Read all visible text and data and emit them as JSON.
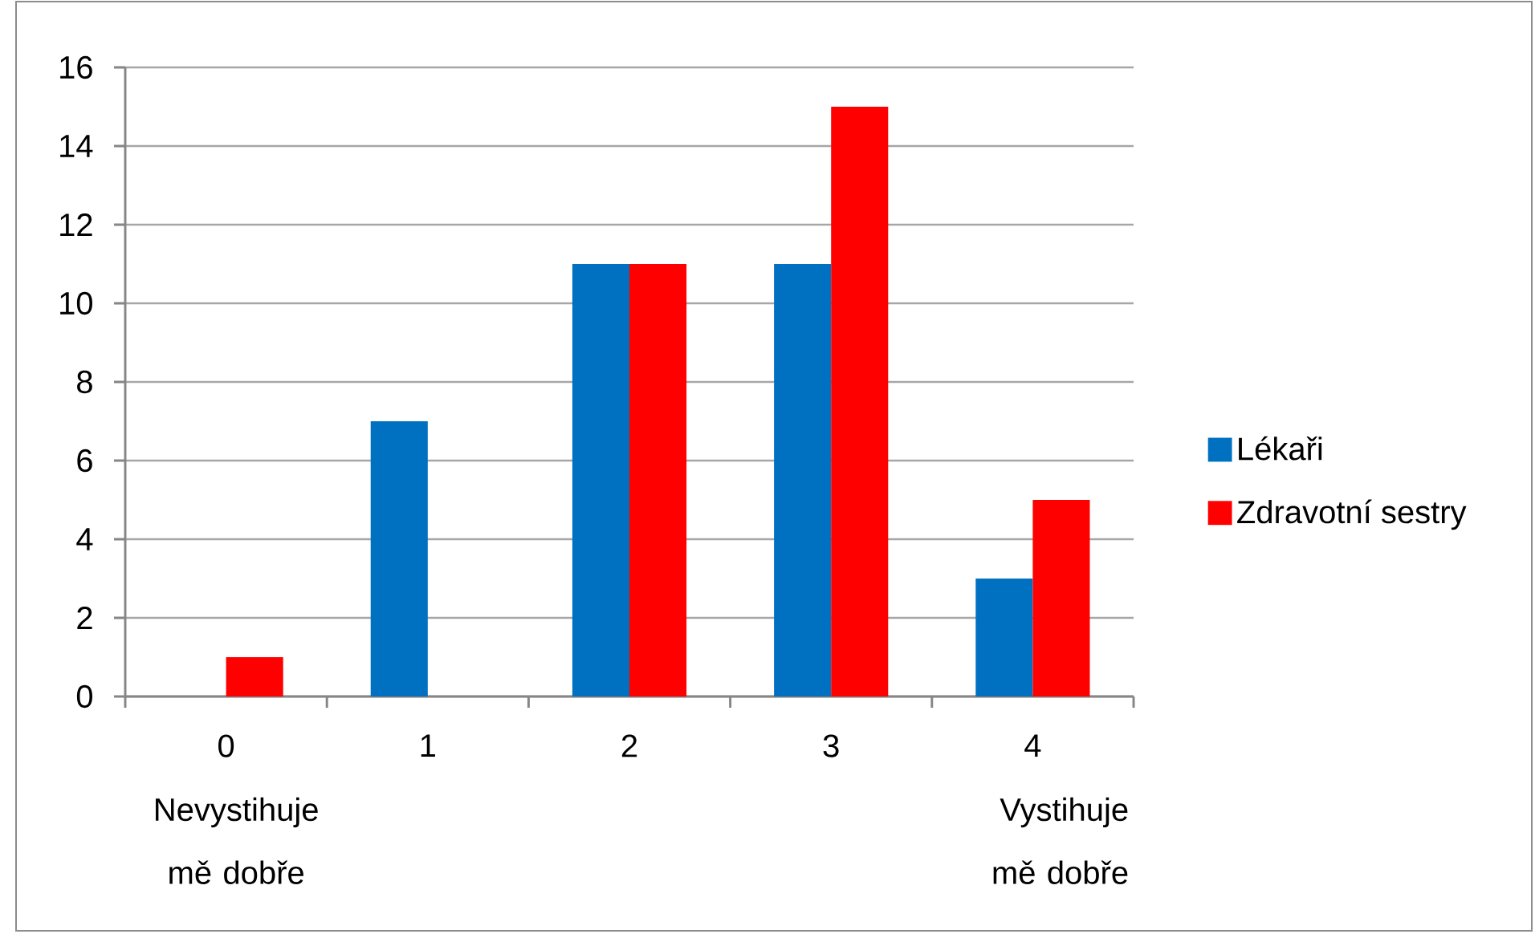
{
  "chart_data": {
    "type": "bar",
    "categories": [
      "0",
      "1",
      "2",
      "3",
      "4"
    ],
    "series": [
      {
        "name": "Lékaři",
        "color": "#0070c0",
        "values": [
          0,
          7,
          11,
          11,
          3
        ]
      },
      {
        "name": "Zdravotní sestry",
        "color": "#ff0000",
        "values": [
          1,
          0,
          11,
          15,
          5
        ]
      }
    ],
    "ylim": [
      0,
      16
    ],
    "yticks": [
      0,
      2,
      4,
      6,
      8,
      10,
      12,
      14,
      16
    ],
    "grid": "y",
    "legend": "right",
    "annotations": [
      "Nevystihuje mě dobře",
      "Vystihuje mě dobře"
    ]
  }
}
